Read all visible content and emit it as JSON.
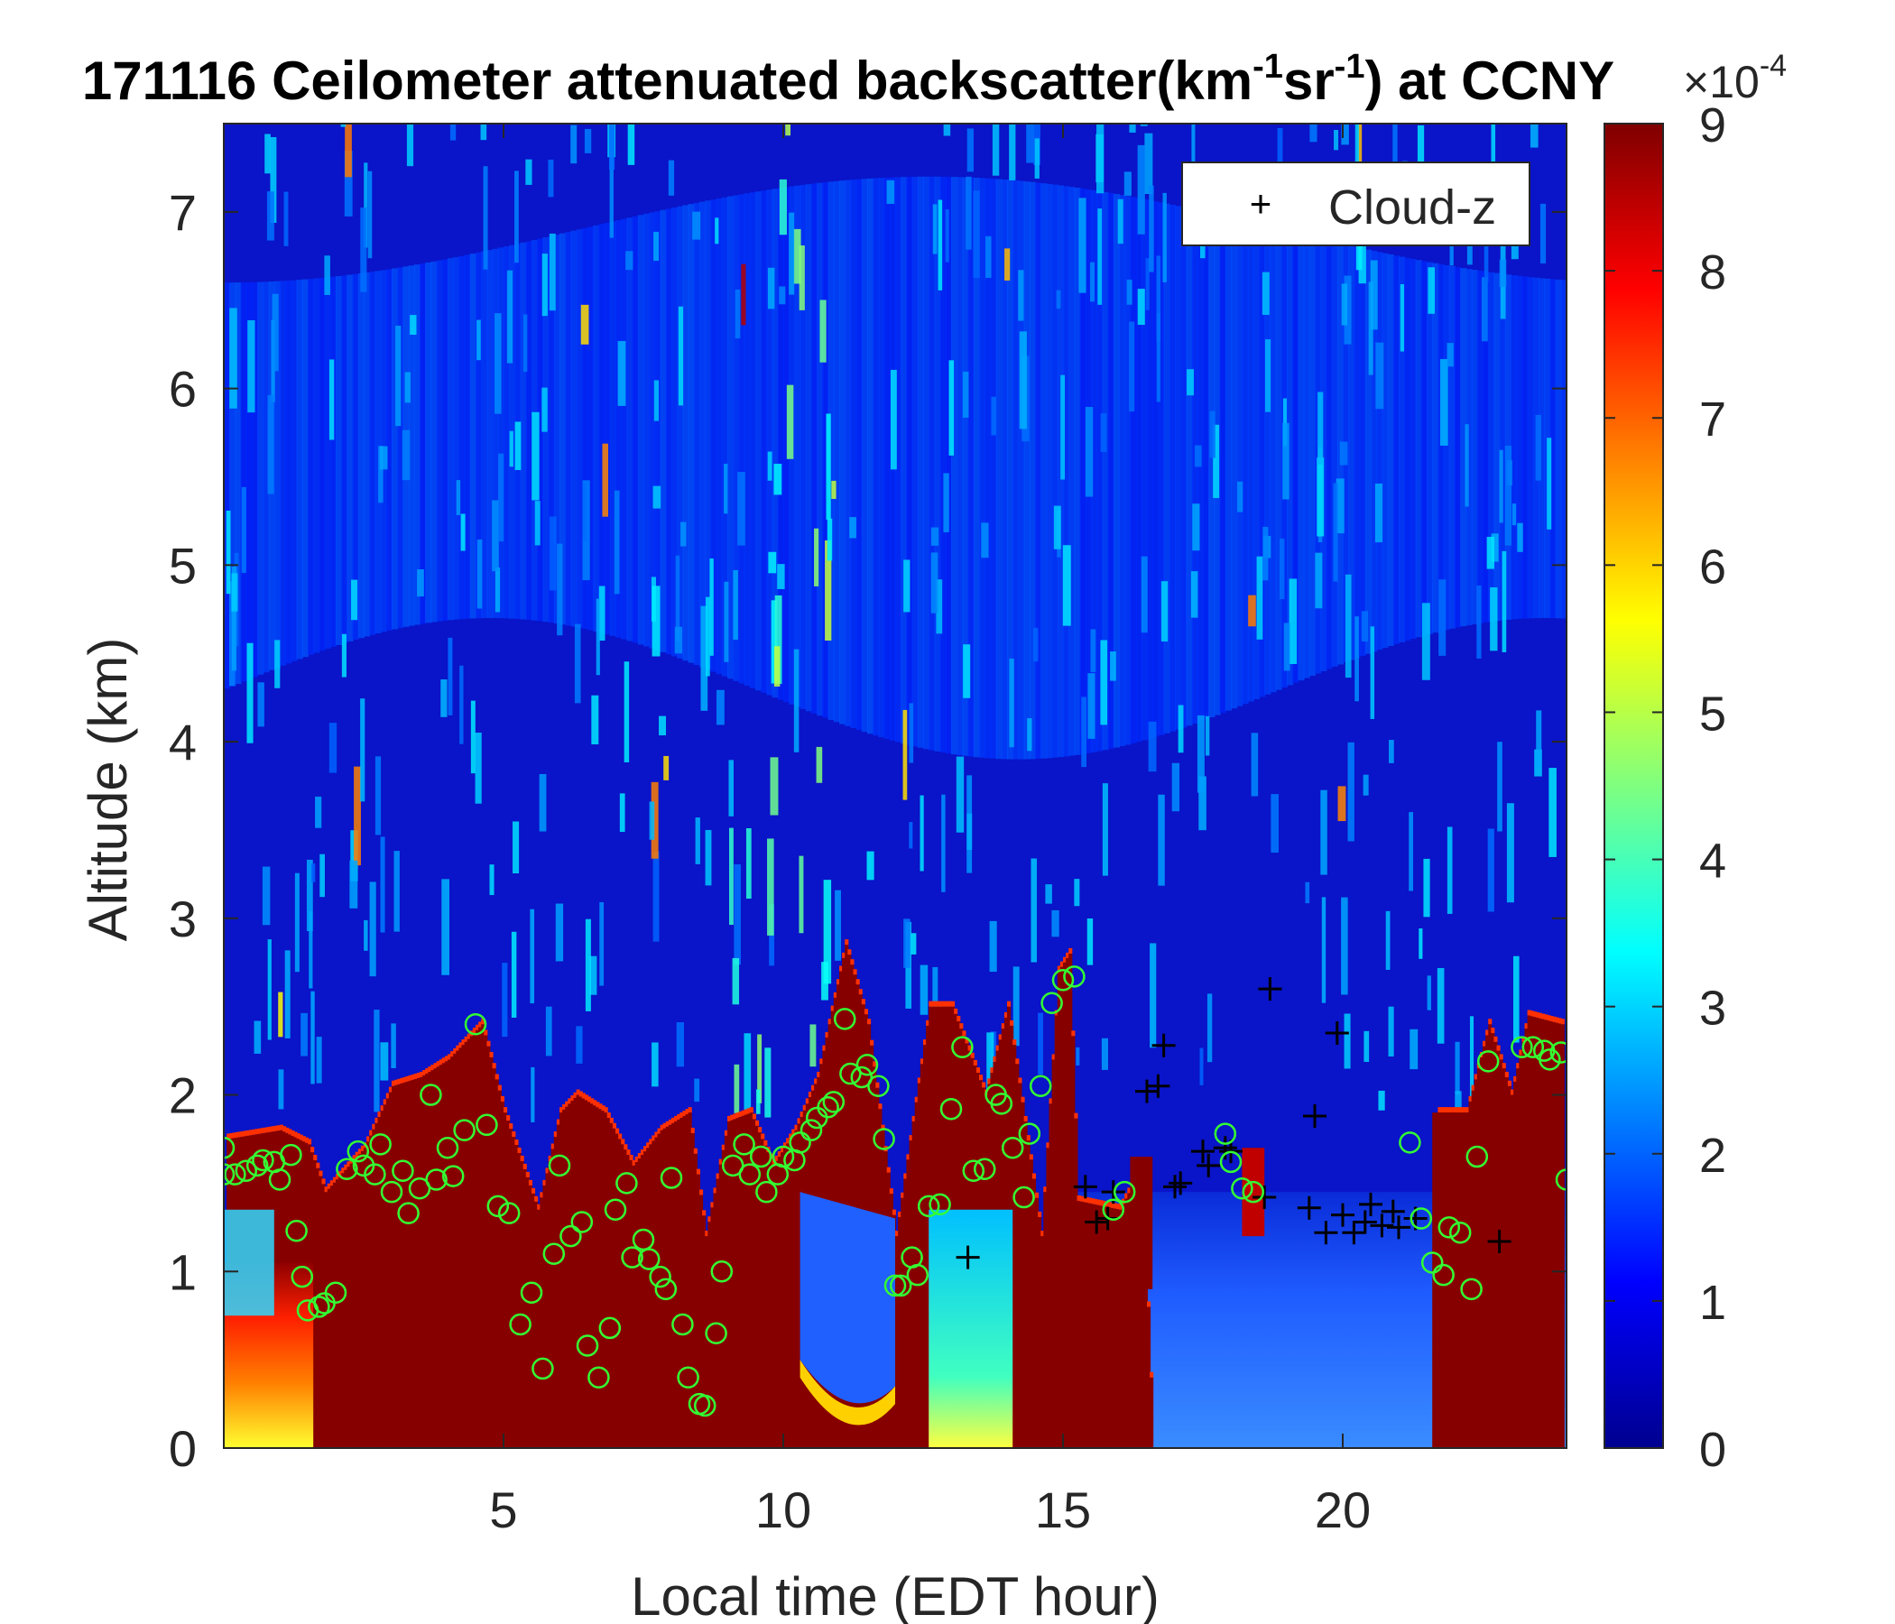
{
  "chart_data": {
    "type": "heatmap",
    "title": {
      "prefix": "171116 Ceilometer attenuated backscatter(km",
      "sup1": "-1",
      "mid": "sr",
      "sup2": "-1",
      "suffix": ") at CCNY"
    },
    "xlabel": "Local time (EDT hour)",
    "ylabel": "Altitude (km)",
    "xlim": [
      0,
      24
    ],
    "ylim": [
      0,
      7.5
    ],
    "xticks": [
      "5",
      "10",
      "15",
      "20"
    ],
    "xtick_values": [
      5,
      10,
      15,
      20
    ],
    "yticks": [
      "0",
      "1",
      "2",
      "3",
      "4",
      "5",
      "6",
      "7"
    ],
    "ytick_values": [
      0,
      1,
      2,
      3,
      4,
      5,
      6,
      7
    ],
    "colorbar": {
      "min": 0,
      "max": 9,
      "ticks": [
        "0",
        "1",
        "2",
        "3",
        "4",
        "5",
        "6",
        "7",
        "8",
        "9"
      ],
      "tick_values": [
        0,
        1,
        2,
        3,
        4,
        5,
        6,
        7,
        8,
        9
      ],
      "exponent_prefix": "×10",
      "exponent": "-4",
      "colormap": "jet"
    },
    "legend": {
      "placement": "top-right",
      "entries": [
        {
          "marker": "+",
          "label": "Cloud-z",
          "color": "#000000"
        }
      ]
    },
    "boundary_layer_top": [
      [
        0.05,
        1.75
      ],
      [
        1.0,
        1.8
      ],
      [
        1.5,
        1.72
      ],
      [
        1.8,
        1.45
      ],
      [
        2.5,
        1.7
      ],
      [
        3.0,
        2.05
      ],
      [
        3.5,
        2.1
      ],
      [
        4.0,
        2.2
      ],
      [
        4.6,
        2.4
      ],
      [
        5.0,
        1.9
      ],
      [
        5.6,
        1.35
      ],
      [
        6.0,
        1.9
      ],
      [
        6.3,
        2.0
      ],
      [
        6.8,
        1.9
      ],
      [
        7.3,
        1.6
      ],
      [
        7.8,
        1.8
      ],
      [
        8.3,
        1.9
      ],
      [
        8.6,
        1.2
      ],
      [
        9.0,
        1.85
      ],
      [
        9.4,
        1.9
      ],
      [
        9.8,
        1.6
      ],
      [
        10.2,
        1.8
      ],
      [
        10.6,
        2.1
      ],
      [
        11.1,
        2.85
      ],
      [
        11.5,
        2.4
      ],
      [
        12.0,
        1.2
      ],
      [
        12.6,
        2.5
      ],
      [
        13.0,
        2.5
      ],
      [
        13.6,
        2.0
      ],
      [
        14.0,
        2.5
      ],
      [
        14.6,
        1.2
      ],
      [
        14.9,
        2.7
      ],
      [
        15.1,
        2.8
      ],
      [
        15.25,
        1.4
      ],
      [
        16.0,
        1.35
      ],
      [
        16.4,
        1.6
      ],
      [
        16.6,
        0.0
      ],
      [
        21.6,
        0.0
      ],
      [
        21.7,
        1.9
      ],
      [
        22.2,
        1.9
      ],
      [
        22.6,
        2.4
      ],
      [
        23.0,
        2.0
      ],
      [
        23.3,
        2.45
      ],
      [
        23.9,
        2.4
      ]
    ],
    "cloud_z": [
      [
        13.3,
        1.08
      ],
      [
        15.4,
        1.48
      ],
      [
        15.6,
        1.28
      ],
      [
        15.8,
        1.3
      ],
      [
        15.9,
        1.45
      ],
      [
        16.5,
        2.02
      ],
      [
        16.7,
        2.05
      ],
      [
        16.8,
        2.28
      ],
      [
        17.0,
        1.48
      ],
      [
        17.1,
        1.5
      ],
      [
        17.5,
        1.68
      ],
      [
        17.6,
        1.6
      ],
      [
        17.9,
        1.7
      ],
      [
        18.0,
        1.68
      ],
      [
        18.6,
        1.42
      ],
      [
        18.7,
        2.6
      ],
      [
        19.4,
        1.36
      ],
      [
        19.5,
        1.88
      ],
      [
        19.7,
        1.22
      ],
      [
        19.9,
        2.35
      ],
      [
        20.0,
        1.32
      ],
      [
        20.2,
        1.22
      ],
      [
        20.4,
        1.28
      ],
      [
        20.5,
        1.38
      ],
      [
        20.7,
        1.26
      ],
      [
        20.9,
        1.34
      ],
      [
        21.0,
        1.25
      ],
      [
        21.3,
        1.3
      ],
      [
        22.8,
        1.17
      ]
    ],
    "pbl_height": [
      [
        0.0,
        1.55
      ],
      [
        0.0,
        1.7
      ],
      [
        0.2,
        1.55
      ],
      [
        0.4,
        1.57
      ],
      [
        0.6,
        1.6
      ],
      [
        0.7,
        1.63
      ],
      [
        0.9,
        1.62
      ],
      [
        1.0,
        1.52
      ],
      [
        1.2,
        1.66
      ],
      [
        1.3,
        1.23
      ],
      [
        1.4,
        0.97
      ],
      [
        1.5,
        0.78
      ],
      [
        1.7,
        0.8
      ],
      [
        1.8,
        0.82
      ],
      [
        2.0,
        0.88
      ],
      [
        2.2,
        1.58
      ],
      [
        2.4,
        1.68
      ],
      [
        2.5,
        1.6
      ],
      [
        2.7,
        1.55
      ],
      [
        2.8,
        1.72
      ],
      [
        3.0,
        1.45
      ],
      [
        3.2,
        1.57
      ],
      [
        3.3,
        1.33
      ],
      [
        3.5,
        1.47
      ],
      [
        3.7,
        2.0
      ],
      [
        3.8,
        1.52
      ],
      [
        4.0,
        1.7
      ],
      [
        4.1,
        1.54
      ],
      [
        4.3,
        1.8
      ],
      [
        4.5,
        2.4
      ],
      [
        4.7,
        1.83
      ],
      [
        4.9,
        1.37
      ],
      [
        5.1,
        1.33
      ],
      [
        5.3,
        0.7
      ],
      [
        5.5,
        0.88
      ],
      [
        5.7,
        0.45
      ],
      [
        5.9,
        1.1
      ],
      [
        6.0,
        1.6
      ],
      [
        6.2,
        1.2
      ],
      [
        6.4,
        1.28
      ],
      [
        6.5,
        0.58
      ],
      [
        6.7,
        0.4
      ],
      [
        6.9,
        0.68
      ],
      [
        7.0,
        1.35
      ],
      [
        7.2,
        1.5
      ],
      [
        7.3,
        1.08
      ],
      [
        7.5,
        1.18
      ],
      [
        7.6,
        1.07
      ],
      [
        7.8,
        0.97
      ],
      [
        7.9,
        0.9
      ],
      [
        8.0,
        1.53
      ],
      [
        8.2,
        0.7
      ],
      [
        8.3,
        0.4
      ],
      [
        8.5,
        0.25
      ],
      [
        8.6,
        0.24
      ],
      [
        8.8,
        0.65
      ],
      [
        8.9,
        1.0
      ],
      [
        9.1,
        1.6
      ],
      [
        9.3,
        1.72
      ],
      [
        9.4,
        1.55
      ],
      [
        9.6,
        1.65
      ],
      [
        9.7,
        1.45
      ],
      [
        9.9,
        1.55
      ],
      [
        10.0,
        1.65
      ],
      [
        10.2,
        1.63
      ],
      [
        10.3,
        1.73
      ],
      [
        10.5,
        1.8
      ],
      [
        10.6,
        1.87
      ],
      [
        10.8,
        1.93
      ],
      [
        10.9,
        1.96
      ],
      [
        11.1,
        2.43
      ],
      [
        11.2,
        2.12
      ],
      [
        11.4,
        2.1
      ],
      [
        11.5,
        2.17
      ],
      [
        11.7,
        2.05
      ],
      [
        11.8,
        1.75
      ],
      [
        12.0,
        0.92
      ],
      [
        12.1,
        0.92
      ],
      [
        12.3,
        1.08
      ],
      [
        12.4,
        0.98
      ],
      [
        12.6,
        1.37
      ],
      [
        12.8,
        1.38
      ],
      [
        13.0,
        1.92
      ],
      [
        13.2,
        2.27
      ],
      [
        13.4,
        1.57
      ],
      [
        13.6,
        1.58
      ],
      [
        13.8,
        2.0
      ],
      [
        13.9,
        1.95
      ],
      [
        14.1,
        1.7
      ],
      [
        14.3,
        1.42
      ],
      [
        14.4,
        1.78
      ],
      [
        14.6,
        2.05
      ],
      [
        14.8,
        2.52
      ],
      [
        15.0,
        2.65
      ],
      [
        15.2,
        2.67
      ],
      [
        15.9,
        1.35
      ],
      [
        16.1,
        1.45
      ],
      [
        17.9,
        1.78
      ],
      [
        18.0,
        1.62
      ],
      [
        18.2,
        1.47
      ],
      [
        18.4,
        1.45
      ],
      [
        21.2,
        1.73
      ],
      [
        21.4,
        1.3
      ],
      [
        21.6,
        1.05
      ],
      [
        21.8,
        0.98
      ],
      [
        21.9,
        1.25
      ],
      [
        22.1,
        1.22
      ],
      [
        22.3,
        0.9
      ],
      [
        22.4,
        1.65
      ],
      [
        22.6,
        2.19
      ],
      [
        23.2,
        2.27
      ],
      [
        23.4,
        2.27
      ],
      [
        23.6,
        2.25
      ],
      [
        23.7,
        2.2
      ],
      [
        23.9,
        2.24
      ],
      [
        24.0,
        1.52
      ]
    ]
  }
}
